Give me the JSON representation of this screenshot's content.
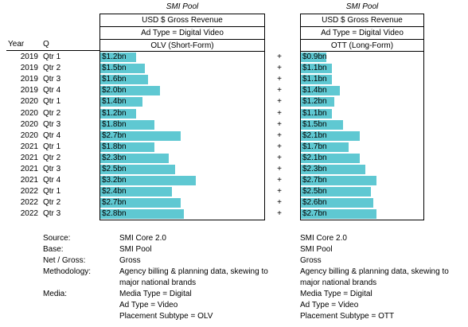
{
  "chart_data": {
    "type": "bar",
    "orientation": "horizontal",
    "rows": [
      {
        "year": "2019",
        "q": "Qtr 1"
      },
      {
        "year": "2019",
        "q": "Qtr 2"
      },
      {
        "year": "2019",
        "q": "Qtr 3"
      },
      {
        "year": "2019",
        "q": "Qtr 4"
      },
      {
        "year": "2020",
        "q": "Qtr 1"
      },
      {
        "year": "2020",
        "q": "Qtr 2"
      },
      {
        "year": "2020",
        "q": "Qtr 3"
      },
      {
        "year": "2020",
        "q": "Qtr 4"
      },
      {
        "year": "2021",
        "q": "Qtr 1"
      },
      {
        "year": "2021",
        "q": "Qtr 2"
      },
      {
        "year": "2021",
        "q": "Qtr 3"
      },
      {
        "year": "2021",
        "q": "Qtr 4"
      },
      {
        "year": "2022",
        "q": "Qtr 1"
      },
      {
        "year": "2022",
        "q": "Qtr 2"
      },
      {
        "year": "2022",
        "q": "Qtr 3"
      }
    ],
    "series": [
      {
        "name": "OLV (Short-Form)",
        "values": [
          1.2,
          1.5,
          1.6,
          2.0,
          1.4,
          1.2,
          1.8,
          2.7,
          1.8,
          2.3,
          2.5,
          3.2,
          2.4,
          2.7,
          2.8
        ],
        "labels": [
          "$1.2bn",
          "$1.5bn",
          "$1.6bn",
          "$2.0bn",
          "$1.4bn",
          "$1.2bn",
          "$1.8bn",
          "$2.7bn",
          "$1.8bn",
          "$2.3bn",
          "$2.5bn",
          "$3.2bn",
          "$2.4bn",
          "$2.7bn",
          "$2.8bn"
        ],
        "color": "#5fc8d2",
        "max": 3.2
      },
      {
        "name": "OTT (Long-Form)",
        "values": [
          0.9,
          1.1,
          1.1,
          1.4,
          1.2,
          1.1,
          1.5,
          2.1,
          1.7,
          2.1,
          2.3,
          2.7,
          2.5,
          2.6,
          2.7
        ],
        "labels": [
          "$0.9bn",
          "$1.1bn",
          "$1.1bn",
          "$1.4bn",
          "$1.2bn",
          "$1.1bn",
          "$1.5bn",
          "$2.1bn",
          "$1.7bn",
          "$2.1bn",
          "$2.3bn",
          "$2.7bn",
          "$2.5bn",
          "$2.6bn",
          "$2.7bn"
        ],
        "color": "#5fc8d2",
        "max": 2.7
      }
    ],
    "separator": "+"
  },
  "left_panel": {
    "title": "SMI Pool",
    "measure": "USD $ Gross Revenue",
    "filter": "Ad Type = Digital Video",
    "series_header": "OLV (Short-Form)",
    "col_year": "Year",
    "col_q": "Q"
  },
  "right_panel": {
    "title": "SMI Pool",
    "measure": "USD $ Gross Revenue",
    "filter": "Ad Type = Digital Video",
    "series_header": "OTT (Long-Form)"
  },
  "notes_left": {
    "source_key": "Source:",
    "source_val": "SMI Core 2.0",
    "base_key": "Base:",
    "base_val": "SMI Pool",
    "netgross_key": "Net / Gross:",
    "netgross_val": "Gross",
    "method_key": "Methodology:",
    "method_val_1": "Agency billing & planning data, skewing to",
    "method_val_2": "major national brands",
    "media_key": "Media:",
    "media_val_1": "Media Type = Digital",
    "media_val_2": "Ad Type = Video",
    "media_val_3": "Placement Subtype = OLV"
  },
  "notes_right": {
    "source_val": "SMI Core 2.0",
    "base_val": "SMI Pool",
    "netgross_val": "Gross",
    "method_val_1": "Agency billing & planning data, skewing to",
    "method_val_2": "major national brands",
    "media_val_1": "Media Type = Digital",
    "media_val_2": "Ad Type = Video",
    "media_val_3": "Placement Subtype = OTT"
  }
}
